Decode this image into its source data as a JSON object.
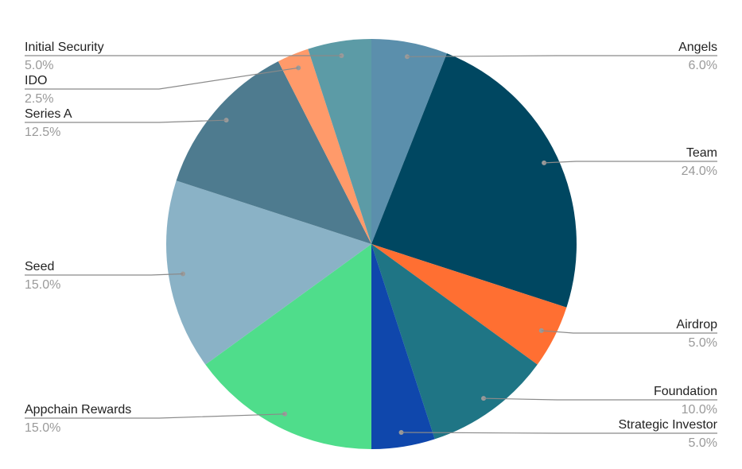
{
  "chart_data": {
    "type": "pie",
    "start_angle_deg": 0,
    "direction": "clockwise",
    "legend": "none",
    "slices": [
      {
        "label": "Angels",
        "value": 6.0,
        "display": "6.0%",
        "color": "#5B8FAC"
      },
      {
        "label": "Team",
        "value": 24.0,
        "display": "24.0%",
        "color": "#004761"
      },
      {
        "label": "Airdrop",
        "value": 5.0,
        "display": "5.0%",
        "color": "#FF6F32"
      },
      {
        "label": "Foundation",
        "value": 10.0,
        "display": "10.0%",
        "color": "#1F7585"
      },
      {
        "label": "Strategic Investor",
        "value": 5.0,
        "display": "5.0%",
        "color": "#0F47AC"
      },
      {
        "label": "Appchain Rewards",
        "value": 15.0,
        "display": "15.0%",
        "color": "#4FDD8B"
      },
      {
        "label": "Seed",
        "value": 15.0,
        "display": "15.0%",
        "color": "#8AB2C6"
      },
      {
        "label": "Series A",
        "value": 12.5,
        "display": "12.5%",
        "color": "#4E7B8F"
      },
      {
        "label": "IDO",
        "value": 2.5,
        "display": "2.5%",
        "color": "#FF9A6A"
      },
      {
        "label": "Initial Security",
        "value": 5.0,
        "display": "5.0%",
        "color": "#5C9BA6"
      }
    ]
  }
}
